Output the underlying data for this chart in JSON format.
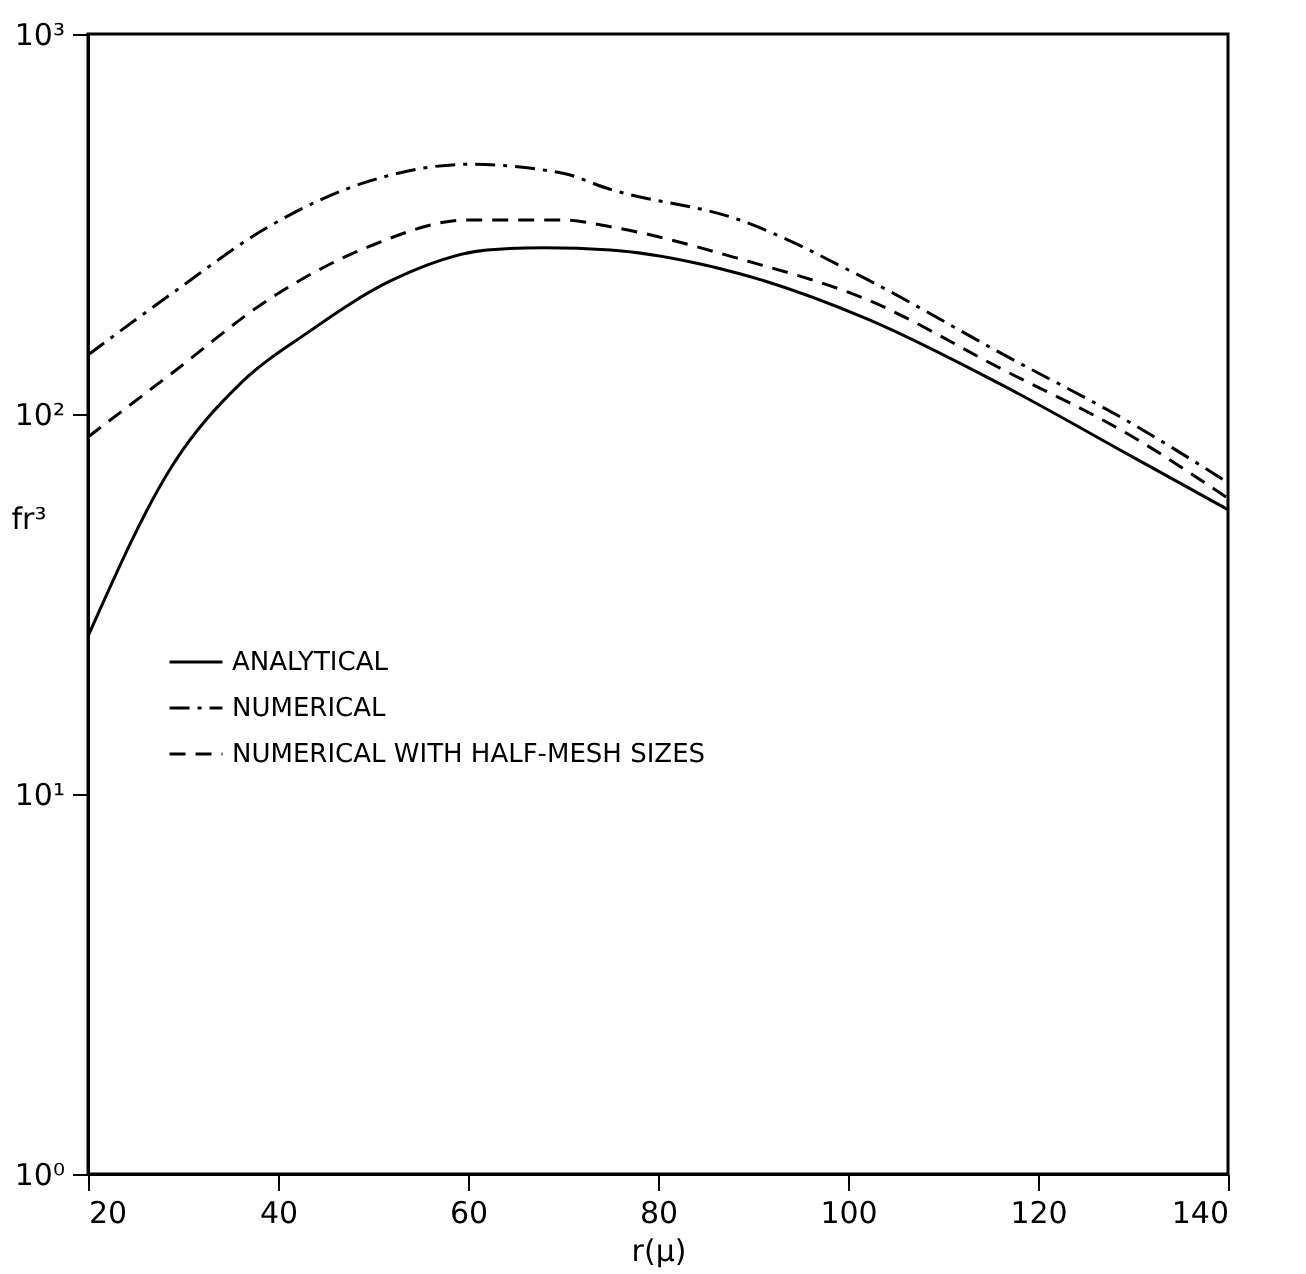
{
  "chart_data": {
    "type": "line",
    "xlabel": "r(μ)",
    "ylabel": "fr³",
    "log": "y",
    "grid": false,
    "legend": "left",
    "marker": "none",
    "xlim": [
      20,
      140
    ],
    "xticks": [
      20,
      40,
      60,
      80,
      100,
      120,
      140
    ],
    "ylim": [
      1,
      1000
    ],
    "yticks": [
      {
        "value": 1,
        "label": "10⁰"
      },
      {
        "value": 10,
        "label": "10¹"
      },
      {
        "value": 100,
        "label": "10²"
      },
      {
        "value": 1000,
        "label": "10³"
      }
    ],
    "series": [
      {
        "name": "ANALYTICAL",
        "color": "#000000",
        "line_style": "solid",
        "x": [
          20,
          29,
          36,
          43,
          52,
          62,
          68,
          75,
          88.6,
          102,
          116,
          130,
          140
        ],
        "values": [
          26,
          74,
          120,
          163,
          225,
          270,
          274,
          270,
          234,
          178,
          120,
          77,
          56
        ]
      },
      {
        "name": "NUMERICAL",
        "color": "#000000",
        "line_style": "dashdot",
        "x": [
          20,
          29,
          39,
          49.6,
          60,
          70,
          74.7,
          88.6,
          102,
          116,
          130,
          140
        ],
        "values": [
          143,
          209,
          311,
          410,
          454,
          430,
          392,
          324,
          226,
          145,
          94,
          66
        ]
      },
      {
        "name": "NUMERICAL WITH HALF-MESH SIZES",
        "color": "#000000",
        "line_style": "dashed",
        "x": [
          20,
          29,
          39,
          49.6,
          60,
          70,
          75,
          88.6,
          102,
          116,
          130,
          140
        ],
        "values": [
          87,
          129,
          200,
          276,
          324,
          324,
          311,
          256,
          200,
          132,
          87,
          60
        ]
      }
    ]
  }
}
